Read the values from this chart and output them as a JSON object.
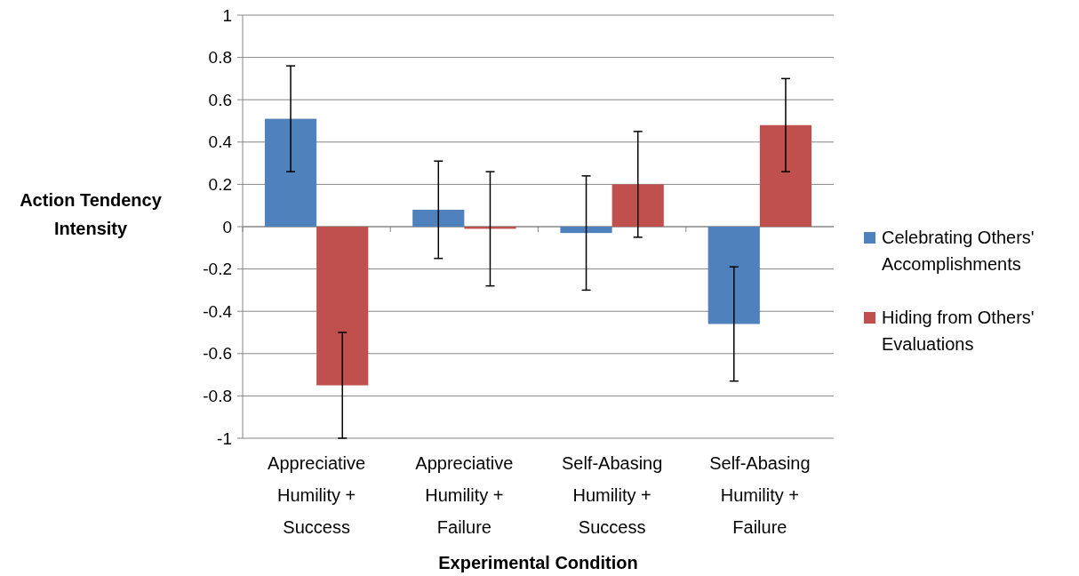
{
  "chart_data": {
    "type": "bar",
    "xlabel": "Experimental Condition",
    "ylabel": "Action Tendency Intensity",
    "categories": [
      "Appreciative Humility + Success",
      "Appreciative Humility + Failure",
      "Self-Abasing Humility + Success",
      "Self-Abasing Humility + Failure"
    ],
    "series": [
      {
        "name": "Celebrating Others' Accomplishments",
        "color": "#4f81bd",
        "values": [
          0.51,
          0.08,
          -0.03,
          -0.46
        ],
        "errors": [
          [
            0.26,
            0.76
          ],
          [
            -0.15,
            0.31
          ],
          [
            -0.3,
            0.24
          ],
          [
            -0.73,
            -0.19
          ]
        ]
      },
      {
        "name": "Hiding from Others' Evaluations",
        "color": "#c0504d",
        "values": [
          -0.75,
          -0.01,
          0.2,
          0.48
        ],
        "errors": [
          [
            -1,
            -0.5
          ],
          [
            -0.28,
            0.26
          ],
          [
            -0.05,
            0.45
          ],
          [
            0.26,
            0.7
          ]
        ]
      }
    ],
    "ylim": [
      -1,
      1
    ],
    "yticks": [
      -1,
      -0.8,
      -0.6,
      -0.4,
      -0.2,
      0,
      0.2,
      0.4,
      0.6,
      0.8,
      1
    ],
    "grid": "y",
    "legend": "right"
  }
}
